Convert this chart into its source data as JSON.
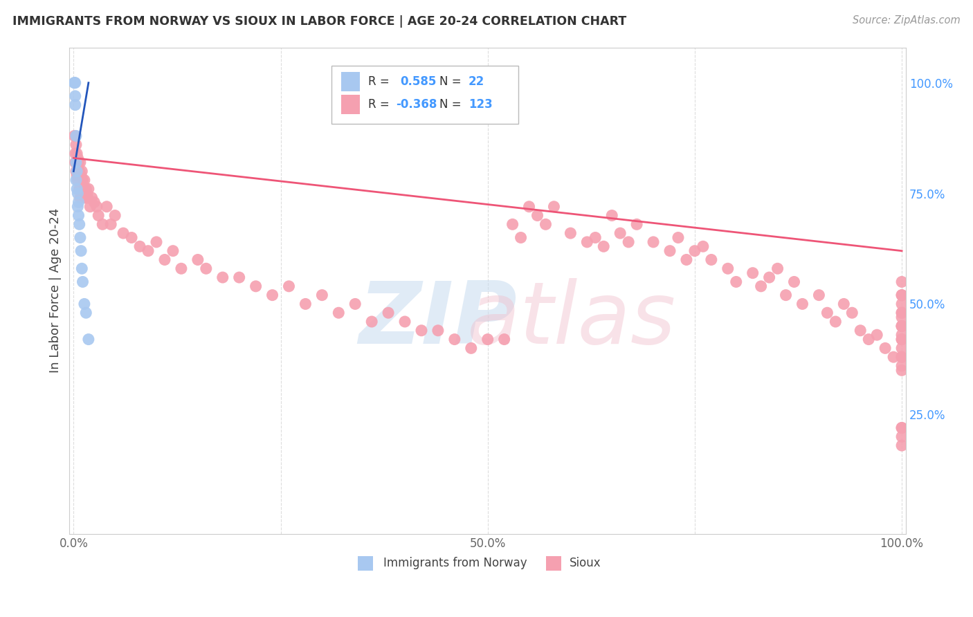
{
  "title": "IMMIGRANTS FROM NORWAY VS SIOUX IN LABOR FORCE | AGE 20-24 CORRELATION CHART",
  "source": "Source: ZipAtlas.com",
  "ylabel": "In Labor Force | Age 20-24",
  "legend_blue_R": "0.585",
  "legend_blue_N": "22",
  "legend_pink_R": "-0.368",
  "legend_pink_N": "123",
  "blue_color": "#A8C8F0",
  "pink_color": "#F5A0B0",
  "blue_line_color": "#2255BB",
  "pink_line_color": "#EE5577",
  "right_axis_color": "#4499FF",
  "background_color": "#FFFFFF",
  "grid_color": "#DDDDDD",
  "blue_x": [
    0.001,
    0.001,
    0.002,
    0.002,
    0.002,
    0.003,
    0.003,
    0.003,
    0.004,
    0.004,
    0.005,
    0.005,
    0.006,
    0.006,
    0.007,
    0.008,
    0.009,
    0.01,
    0.011,
    0.013,
    0.015,
    0.018
  ],
  "blue_y": [
    1.0,
    1.0,
    1.0,
    0.97,
    0.95,
    0.88,
    0.82,
    0.78,
    0.8,
    0.76,
    0.75,
    0.72,
    0.73,
    0.7,
    0.68,
    0.65,
    0.62,
    0.58,
    0.55,
    0.5,
    0.48,
    0.42
  ],
  "pink_x": [
    0.001,
    0.002,
    0.002,
    0.003,
    0.003,
    0.004,
    0.004,
    0.005,
    0.005,
    0.006,
    0.007,
    0.007,
    0.008,
    0.008,
    0.009,
    0.01,
    0.011,
    0.012,
    0.013,
    0.014,
    0.015,
    0.016,
    0.017,
    0.018,
    0.02,
    0.022,
    0.025,
    0.028,
    0.03,
    0.035,
    0.04,
    0.045,
    0.05,
    0.06,
    0.07,
    0.08,
    0.09,
    0.1,
    0.11,
    0.12,
    0.13,
    0.15,
    0.16,
    0.18,
    0.2,
    0.22,
    0.24,
    0.26,
    0.28,
    0.3,
    0.32,
    0.34,
    0.36,
    0.38,
    0.4,
    0.42,
    0.44,
    0.46,
    0.48,
    0.5,
    0.52,
    0.53,
    0.54,
    0.55,
    0.56,
    0.57,
    0.58,
    0.6,
    0.62,
    0.63,
    0.64,
    0.65,
    0.66,
    0.67,
    0.68,
    0.7,
    0.72,
    0.73,
    0.74,
    0.75,
    0.76,
    0.77,
    0.79,
    0.8,
    0.82,
    0.83,
    0.84,
    0.85,
    0.86,
    0.87,
    0.88,
    0.9,
    0.91,
    0.92,
    0.93,
    0.94,
    0.95,
    0.96,
    0.97,
    0.98,
    0.99,
    1.0,
    1.0,
    1.0,
    1.0,
    1.0,
    1.0,
    1.0,
    1.0,
    1.0,
    1.0,
    1.0,
    1.0,
    1.0,
    1.0,
    1.0,
    1.0,
    1.0,
    1.0,
    1.0,
    1.0,
    1.0,
    1.0
  ],
  "pink_y": [
    0.88,
    0.84,
    0.82,
    0.86,
    0.8,
    0.84,
    0.79,
    0.83,
    0.78,
    0.82,
    0.8,
    0.76,
    0.82,
    0.74,
    0.79,
    0.8,
    0.78,
    0.76,
    0.78,
    0.74,
    0.76,
    0.75,
    0.74,
    0.76,
    0.72,
    0.74,
    0.73,
    0.72,
    0.7,
    0.68,
    0.72,
    0.68,
    0.7,
    0.66,
    0.65,
    0.63,
    0.62,
    0.64,
    0.6,
    0.62,
    0.58,
    0.6,
    0.58,
    0.56,
    0.56,
    0.54,
    0.52,
    0.54,
    0.5,
    0.52,
    0.48,
    0.5,
    0.46,
    0.48,
    0.46,
    0.44,
    0.44,
    0.42,
    0.4,
    0.42,
    0.42,
    0.68,
    0.65,
    0.72,
    0.7,
    0.68,
    0.72,
    0.66,
    0.64,
    0.65,
    0.63,
    0.7,
    0.66,
    0.64,
    0.68,
    0.64,
    0.62,
    0.65,
    0.6,
    0.62,
    0.63,
    0.6,
    0.58,
    0.55,
    0.57,
    0.54,
    0.56,
    0.58,
    0.52,
    0.55,
    0.5,
    0.52,
    0.48,
    0.46,
    0.5,
    0.48,
    0.44,
    0.42,
    0.43,
    0.4,
    0.38,
    0.36,
    0.45,
    0.43,
    0.5,
    0.38,
    0.35,
    0.22,
    0.18,
    0.2,
    0.22,
    0.47,
    0.52,
    0.48,
    0.45,
    0.42,
    0.4,
    0.38,
    0.42,
    0.45,
    0.55,
    0.48,
    0.52
  ],
  "blue_line_x": [
    0.0,
    0.018
  ],
  "blue_line_y": [
    0.8,
    1.0
  ],
  "pink_line_x": [
    0.0,
    1.0
  ],
  "pink_line_y": [
    0.83,
    0.62
  ],
  "xlim": [
    -0.005,
    1.005
  ],
  "ylim": [
    -0.02,
    1.08
  ],
  "xticks": [
    0.0,
    0.25,
    0.5,
    0.75,
    1.0
  ],
  "xtick_labels": [
    "0.0%",
    "",
    "50.0%",
    "",
    "100.0%"
  ],
  "yticks_right": [
    0.25,
    0.5,
    0.75,
    1.0
  ],
  "ytick_labels_right": [
    "25.0%",
    "50.0%",
    "75.0%",
    "100.0%"
  ]
}
